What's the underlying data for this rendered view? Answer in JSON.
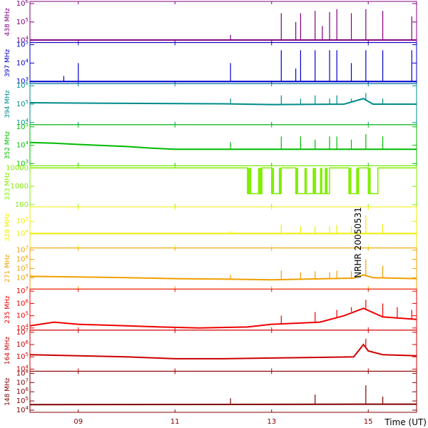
{
  "chart_data": {
    "type": "line",
    "side_label": "NRHR 20050531",
    "xlabel": "Time (UT)",
    "xlim": [
      8.0,
      16.0
    ],
    "xticks": [
      {
        "value": 9,
        "label": "09"
      },
      {
        "value": 11,
        "label": "11"
      },
      {
        "value": 13,
        "label": "13"
      },
      {
        "value": 15,
        "label": "15"
      }
    ],
    "panels": [
      {
        "name": "438 MHz",
        "color": "#800080",
        "scale": "log",
        "ylim": [
          10000,
          1000000
        ],
        "yticks": [
          {
            "value": 10000,
            "label": "10^4"
          },
          {
            "value": 100000,
            "label": "10^5"
          },
          {
            "value": 1000000,
            "label": "10^6"
          }
        ],
        "baseline": [
          [
            8.0,
            10500
          ],
          [
            16.0,
            10500
          ]
        ],
        "spikes": [
          [
            12.15,
            20000
          ],
          [
            13.2,
            300000
          ],
          [
            13.5,
            100000
          ],
          [
            13.6,
            300000
          ],
          [
            13.9,
            400000
          ],
          [
            14.05,
            60000
          ],
          [
            14.2,
            350000
          ],
          [
            14.35,
            500000
          ],
          [
            14.65,
            300000
          ],
          [
            14.95,
            500000
          ],
          [
            15.3,
            400000
          ],
          [
            15.9,
            200000
          ]
        ]
      },
      {
        "name": "397 MHz",
        "color": "#0000cc",
        "scale": "log",
        "ylim": [
          1000,
          100000
        ],
        "yticks": [
          {
            "value": 1000,
            "label": "10^3"
          },
          {
            "value": 10000,
            "label": "10^4"
          },
          {
            "value": 100000,
            "label": "10^5"
          }
        ],
        "baseline": [
          [
            8.0,
            1000
          ],
          [
            16.0,
            1000
          ]
        ],
        "spikes": [
          [
            8.7,
            2000
          ],
          [
            9.0,
            10000
          ],
          [
            12.15,
            10000
          ],
          [
            13.2,
            50000
          ],
          [
            13.5,
            5000
          ],
          [
            13.6,
            50000
          ],
          [
            13.9,
            50000
          ],
          [
            14.2,
            50000
          ],
          [
            14.35,
            50000
          ],
          [
            14.65,
            10000
          ],
          [
            14.95,
            50000
          ],
          [
            15.3,
            50000
          ],
          [
            15.9,
            50000
          ]
        ]
      },
      {
        "name": "394 MHz",
        "color": "#008b8b",
        "scale": "log",
        "ylim": [
          10000,
          1000000
        ],
        "yticks": [
          {
            "value": 10000,
            "label": "10^4"
          },
          {
            "value": 100000,
            "label": "10^5"
          },
          {
            "value": 1000000,
            "label": "10^6"
          }
        ],
        "baseline": [
          [
            8.0,
            120000
          ],
          [
            10.0,
            110000
          ],
          [
            12.0,
            105000
          ],
          [
            13.0,
            95000
          ],
          [
            14.5,
            100000
          ],
          [
            14.9,
            200000
          ],
          [
            15.1,
            100000
          ],
          [
            16.0,
            100000
          ]
        ],
        "spikes": [
          [
            12.15,
            200000
          ],
          [
            13.2,
            300000
          ],
          [
            13.6,
            200000
          ],
          [
            13.9,
            300000
          ],
          [
            14.2,
            200000
          ],
          [
            14.35,
            300000
          ],
          [
            14.65,
            200000
          ],
          [
            14.95,
            400000
          ],
          [
            15.3,
            200000
          ]
        ]
      },
      {
        "name": "352 MHz",
        "color": "#00bb00",
        "scale": "log",
        "ylim": [
          1000,
          100000
        ],
        "yticks": [
          {
            "value": 1000,
            "label": "10^3"
          },
          {
            "value": 10000,
            "label": "10^4"
          },
          {
            "value": 100000,
            "label": "10^5"
          }
        ],
        "baseline": [
          [
            8.0,
            14000
          ],
          [
            8.5,
            13000
          ],
          [
            9.0,
            11000
          ],
          [
            10.0,
            8500
          ],
          [
            10.5,
            7000
          ],
          [
            11.0,
            6000
          ],
          [
            16.0,
            6000
          ]
        ],
        "spikes": [
          [
            12.15,
            15000
          ],
          [
            13.2,
            30000
          ],
          [
            13.6,
            30000
          ],
          [
            13.9,
            20000
          ],
          [
            14.2,
            30000
          ],
          [
            14.35,
            30000
          ],
          [
            14.65,
            20000
          ],
          [
            14.95,
            40000
          ],
          [
            15.3,
            30000
          ]
        ]
      },
      {
        "name": "333 MHz",
        "color": "#80ee00",
        "scale": "log",
        "ylim": [
          100,
          10000
        ],
        "yticks": [
          {
            "value": 100,
            "label": "100"
          },
          {
            "value": 1000,
            "label": "1000"
          },
          {
            "value": 10000,
            "label": "10000"
          }
        ],
        "high": 10000,
        "low": 400,
        "low_intervals": [
          [
            12.5,
            12.8
          ],
          [
            13.0,
            13.2
          ],
          [
            13.5,
            14.2
          ],
          [
            14.6,
            14.8
          ],
          [
            15.0,
            15.2
          ]
        ],
        "bands": [
          [
            12.5,
            12.58
          ],
          [
            12.72,
            12.8
          ],
          [
            13.0,
            13.05
          ],
          [
            13.15,
            13.2
          ],
          [
            13.5,
            13.55
          ],
          [
            13.68,
            13.73
          ],
          [
            13.85,
            13.92
          ],
          [
            14.0,
            14.05
          ],
          [
            14.1,
            14.16
          ],
          [
            14.6,
            14.65
          ],
          [
            14.75,
            14.8
          ],
          [
            15.0,
            15.05
          ]
        ]
      },
      {
        "name": "328 MHz",
        "color": "#eeee00",
        "scale": "log",
        "ylim": [
          1000,
          1000000
        ],
        "yticks": [
          {
            "value": 10000,
            "label": "10^4"
          },
          {
            "value": 100000,
            "label": "10^5"
          }
        ],
        "baseline": [
          [
            8.0,
            10000
          ],
          [
            16.0,
            10000
          ]
        ],
        "spikes": [
          [
            12.15,
            15000
          ],
          [
            13.2,
            50000
          ],
          [
            13.6,
            40000
          ],
          [
            13.9,
            40000
          ],
          [
            14.2,
            40000
          ],
          [
            14.35,
            50000
          ],
          [
            14.65,
            40000
          ],
          [
            14.95,
            300000
          ],
          [
            15.3,
            60000
          ]
        ]
      },
      {
        "name": "271 MHz",
        "color": "#f0a000",
        "scale": "log",
        "ylim": [
          1000,
          10000000
        ],
        "yticks": [
          {
            "value": 10000,
            "label": "10^4"
          },
          {
            "value": 100000,
            "label": "10^5"
          },
          {
            "value": 1000000,
            "label": "10^6"
          },
          {
            "value": 10000000,
            "label": "10^7"
          }
        ],
        "baseline": [
          [
            8.0,
            14000
          ],
          [
            9.0,
            12000
          ],
          [
            10.0,
            10000
          ],
          [
            11.0,
            8000
          ],
          [
            12.0,
            7000
          ],
          [
            13.0,
            6000
          ],
          [
            14.7,
            9000
          ],
          [
            14.9,
            20000
          ],
          [
            15.1,
            10000
          ],
          [
            16.0,
            8000
          ]
        ],
        "spikes": [
          [
            12.15,
            20000
          ],
          [
            13.2,
            60000
          ],
          [
            13.6,
            40000
          ],
          [
            13.9,
            50000
          ],
          [
            14.2,
            40000
          ],
          [
            14.35,
            60000
          ],
          [
            14.65,
            50000
          ],
          [
            14.95,
            1000000
          ],
          [
            15.3,
            200000
          ]
        ]
      },
      {
        "name": "235 MHz",
        "color": "#ee0000",
        "scale": "log",
        "ylim": [
          10000,
          10000000
        ],
        "yticks": [
          {
            "value": 10000,
            "label": "10^4"
          },
          {
            "value": 100000,
            "label": "10^5"
          },
          {
            "value": 1000000,
            "label": "10^6"
          },
          {
            "value": 10000000,
            "label": "10^7"
          }
        ],
        "baseline": [
          [
            8.0,
            15000
          ],
          [
            8.5,
            30000
          ],
          [
            9.0,
            20000
          ],
          [
            10.0,
            15000
          ],
          [
            10.7,
            12000
          ],
          [
            11.5,
            10000
          ],
          [
            12.5,
            12000
          ],
          [
            13.0,
            20000
          ],
          [
            14.0,
            30000
          ],
          [
            14.5,
            100000
          ],
          [
            14.9,
            400000
          ],
          [
            15.3,
            80000
          ],
          [
            16.0,
            50000
          ]
        ],
        "spikes": [
          [
            13.2,
            100000
          ],
          [
            13.9,
            200000
          ],
          [
            14.35,
            300000
          ],
          [
            14.65,
            500000
          ],
          [
            14.95,
            2000000
          ],
          [
            15.3,
            1000000
          ],
          [
            15.6,
            500000
          ],
          [
            15.9,
            300000
          ]
        ]
      },
      {
        "name": "164 MHz",
        "color": "#cc0000",
        "scale": "log",
        "ylim": [
          10000,
          10000000
        ],
        "yticks": [
          {
            "value": 10000,
            "label": "10^4"
          },
          {
            "value": 100000,
            "label": "10^5"
          },
          {
            "value": 1000000,
            "label": "10^6"
          },
          {
            "value": 10000000,
            "label": "10^7"
          }
        ],
        "baseline": [
          [
            8.0,
            150000
          ],
          [
            9.0,
            120000
          ],
          [
            10.0,
            100000
          ],
          [
            11.0,
            70000
          ],
          [
            12.0,
            70000
          ],
          [
            13.0,
            80000
          ],
          [
            14.0,
            90000
          ],
          [
            14.7,
            100000
          ],
          [
            14.9,
            1000000
          ],
          [
            15.0,
            300000
          ],
          [
            15.3,
            150000
          ],
          [
            16.0,
            120000
          ]
        ],
        "spikes": [
          [
            14.95,
            3000000
          ]
        ]
      },
      {
        "name": "148 MHz",
        "color": "#800000",
        "scale": "log",
        "ylim": [
          10000,
          100000000
        ],
        "yticks": [
          {
            "value": 10000,
            "label": "10^4"
          },
          {
            "value": 100000,
            "label": "10^5"
          },
          {
            "value": 1000000,
            "label": "10^6"
          },
          {
            "value": 10000000,
            "label": "10^7"
          },
          {
            "value": 100000000,
            "label": "10^8"
          }
        ],
        "baseline": [
          [
            8.0,
            40000
          ],
          [
            16.0,
            45000
          ]
        ],
        "spikes": [
          [
            12.15,
            200000
          ],
          [
            13.9,
            500000
          ],
          [
            14.95,
            5000000
          ],
          [
            15.3,
            300000
          ]
        ]
      }
    ]
  }
}
